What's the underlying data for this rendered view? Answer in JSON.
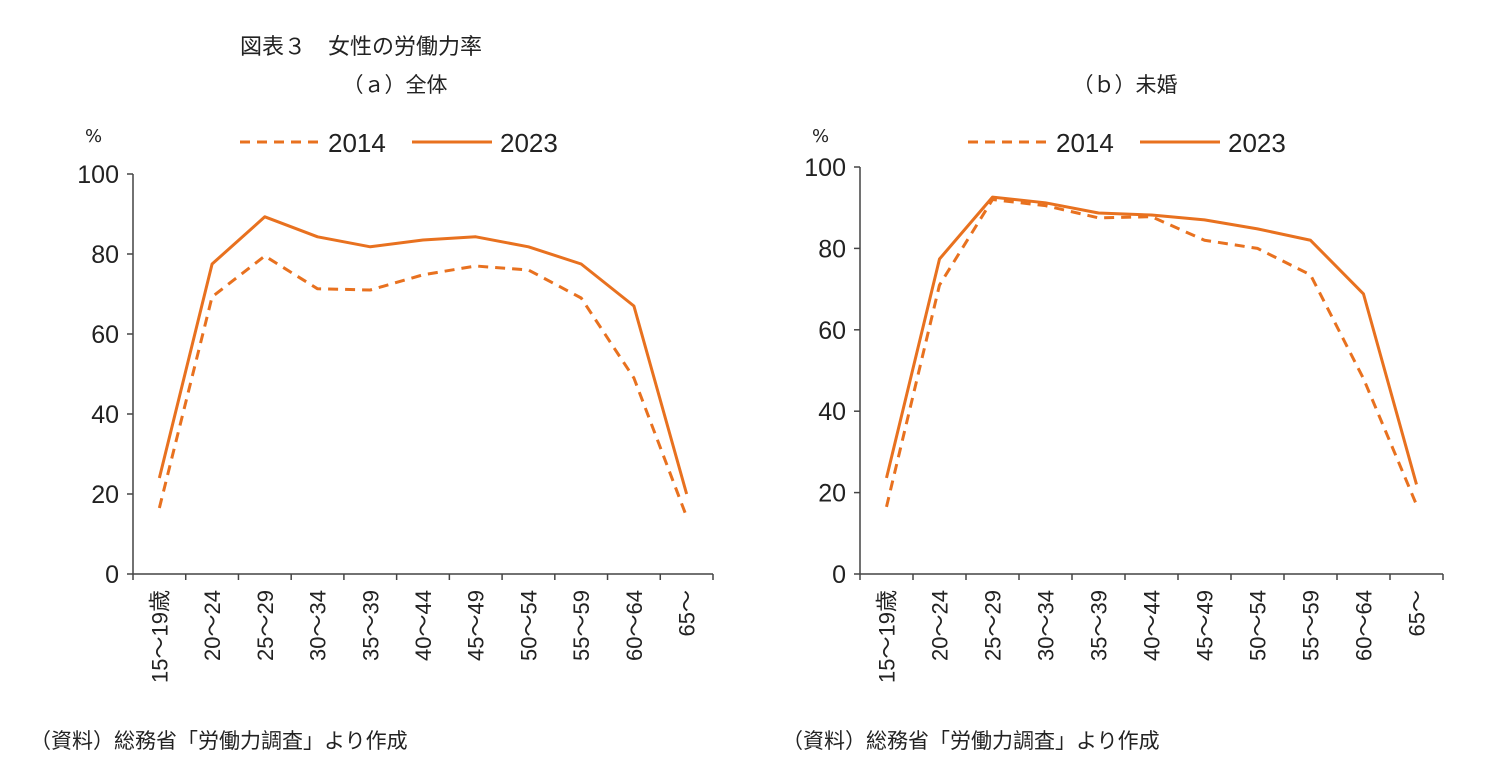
{
  "figure_title": "図表３　女性の労働力率",
  "source_note": "（資料）総務省「労働力調査」より作成",
  "colors": {
    "line": "#E8711F",
    "axis": "#444444"
  },
  "chart_data": [
    {
      "type": "line",
      "title": "（ａ）全体",
      "ylabel": "%",
      "ylim": [
        0,
        100
      ],
      "yticks": [
        "0",
        "20",
        "40",
        "60",
        "80",
        "100"
      ],
      "grid": false,
      "legend_position": "top",
      "categories": [
        "15～19歳",
        "20～24",
        "25～29",
        "30～34",
        "35～39",
        "40～44",
        "45～49",
        "50～54",
        "55～59",
        "60～64",
        "65～"
      ],
      "series": [
        {
          "name": "2014",
          "style": "dashed",
          "values": [
            16.5,
            69.3,
            79.5,
            71.3,
            71.0,
            74.8,
            77.0,
            76.0,
            69.0,
            49.0,
            14.3
          ]
        },
        {
          "name": "2023",
          "style": "solid",
          "values": [
            24.0,
            77.5,
            89.3,
            84.3,
            81.8,
            83.5,
            84.3,
            81.8,
            77.5,
            67.0,
            20.0
          ]
        }
      ],
      "source": "（資料）総務省「労働力調査」より作成"
    },
    {
      "type": "line",
      "title": "（ｂ）未婚",
      "ylabel": "%",
      "ylim": [
        0,
        100
      ],
      "yticks": [
        "0",
        "20",
        "40",
        "60",
        "80",
        "100"
      ],
      "grid": false,
      "legend_position": "top",
      "categories": [
        "15～19歳",
        "20～24",
        "25～29",
        "30～34",
        "35～39",
        "40～44",
        "45～49",
        "50～54",
        "55～59",
        "60～64",
        "65～"
      ],
      "series": [
        {
          "name": "2014",
          "style": "dashed",
          "values": [
            16.5,
            71.0,
            92.0,
            90.5,
            87.5,
            87.8,
            82.0,
            80.0,
            73.5,
            48.0,
            17.0
          ]
        },
        {
          "name": "2023",
          "style": "solid",
          "values": [
            23.6,
            77.4,
            92.6,
            91.2,
            88.7,
            88.2,
            87.0,
            84.8,
            82.0,
            68.8,
            22.0
          ]
        }
      ],
      "source": "（資料）総務省「労働力調査」より作成"
    }
  ]
}
